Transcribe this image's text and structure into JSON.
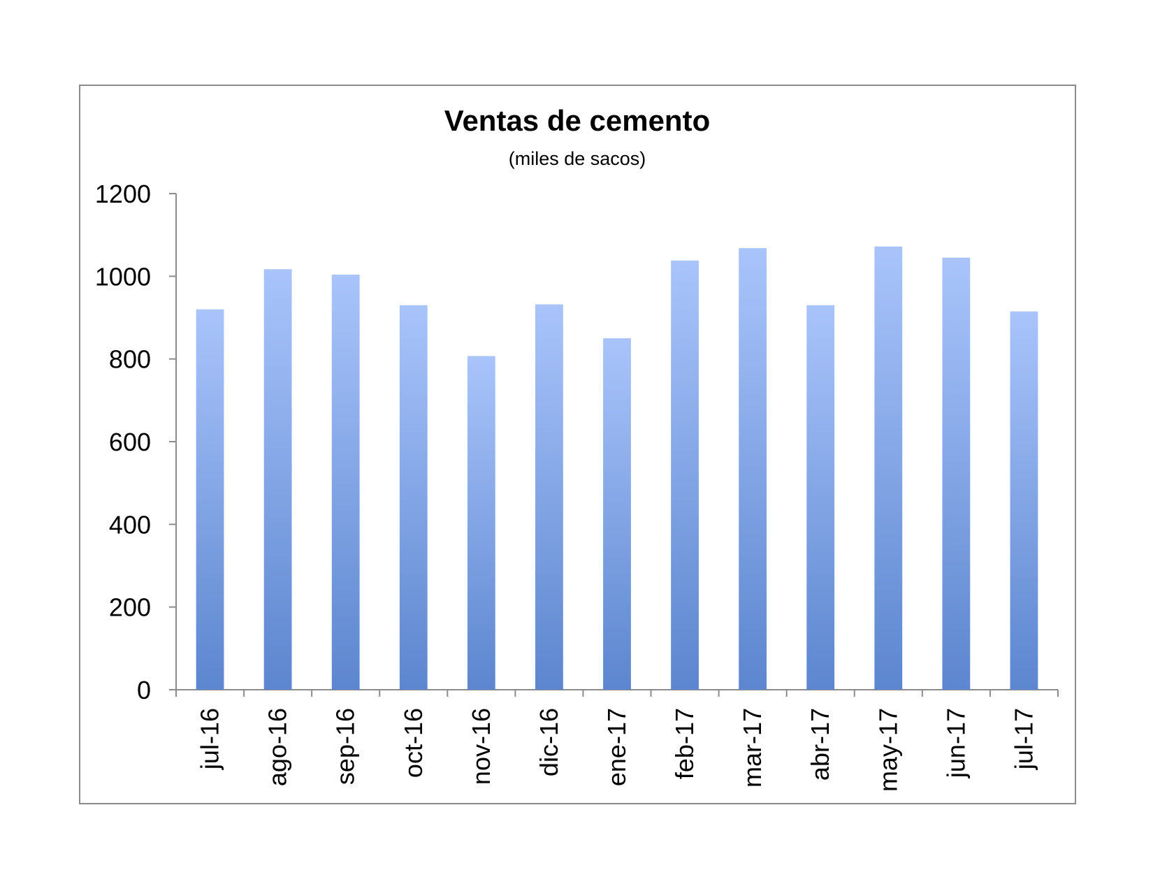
{
  "chart_data": {
    "type": "bar",
    "title": "Ventas de cemento",
    "subtitle": "(miles de sacos)",
    "xlabel": "",
    "ylabel": "",
    "categories": [
      "jul-16",
      "ago-16",
      "sep-16",
      "oct-16",
      "nov-16",
      "dic-16",
      "ene-17",
      "feb-17",
      "mar-17",
      "abr-17",
      "may-17",
      "jun-17",
      "jul-17"
    ],
    "series": [
      {
        "values": [
          920,
          1017,
          1004,
          930,
          807,
          932,
          850,
          1038,
          1068,
          930,
          1072,
          1045,
          915
        ]
      }
    ],
    "ylim": [
      0,
      1200
    ],
    "yticks": [
      "0",
      "200",
      "400",
      "600",
      "800",
      "1000",
      "1200"
    ],
    "grid": false,
    "legend": "none",
    "colors": {
      "bar_top": "#a9c4fb",
      "bar_bottom": "#5c86cf",
      "axis": "#8c8c8c",
      "frame": "#8c8c8c"
    }
  }
}
